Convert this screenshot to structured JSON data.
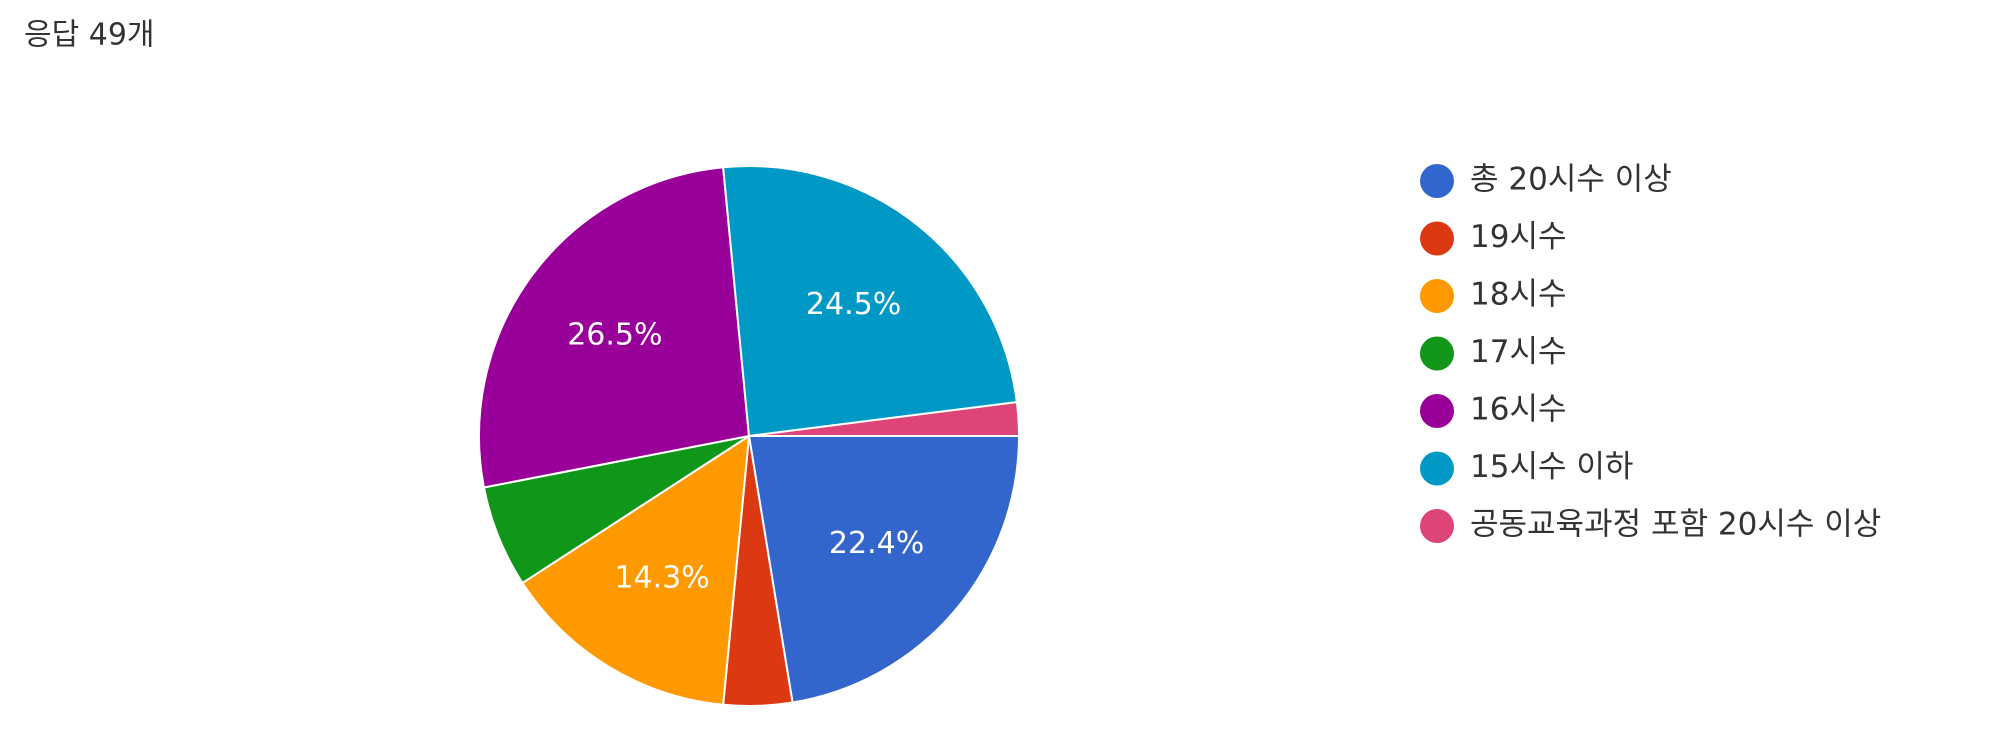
{
  "chart_data": {
    "type": "pie",
    "title": "응답 49개",
    "categories": [
      "총 20시수 이상",
      "19시수",
      "18시수",
      "17시수",
      "16시수",
      "15시수 이하",
      "공동교육과정 포함 20시수 이상"
    ],
    "values": [
      22.4,
      4.1,
      14.3,
      6.1,
      26.5,
      24.5,
      2.0
    ],
    "value_labels": [
      "22.4%",
      null,
      "14.3%",
      null,
      "26.5%",
      "24.5%",
      null
    ],
    "colors": [
      "#3366cc",
      "#dc3912",
      "#ff9900",
      "#109618",
      "#990099",
      "#0099c6",
      "#dd4477"
    ]
  }
}
